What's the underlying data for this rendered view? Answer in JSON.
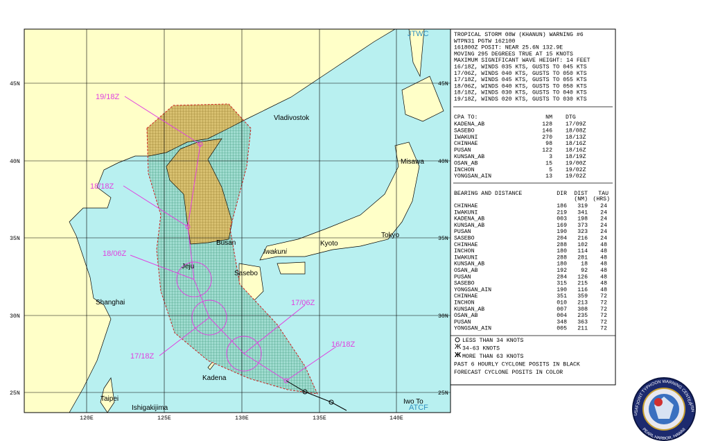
{
  "map": {
    "source_label": "JTWC",
    "footer_label": "ATCF",
    "lat_labels": [
      "45N",
      "40N",
      "35N",
      "30N",
      "25N"
    ],
    "lon_labels": [
      "120E",
      "125E",
      "130E",
      "135E",
      "140E"
    ],
    "places": [
      "Vladivostok",
      "Misawa",
      "Busan",
      "Kyoto",
      "Tokyo",
      "Jeju",
      "Sasebo",
      "Shanghai",
      "Kadena",
      "Taipei",
      "Ishigakijima",
      "Iwo To",
      "Iwakuni"
    ],
    "forecast_labels": [
      "19/18Z",
      "18/18Z",
      "18/06Z",
      "17/06Z",
      "17/18Z",
      "16/18Z"
    ]
  },
  "warning": {
    "header_lines": [
      "TROPICAL STORM 08W (KHANUN) WARNING #6",
      "WTPN31 PGTW 162100",
      "161800Z POSIT: NEAR 25.6N 132.9E",
      "MOVING 295 DEGREES TRUE AT 15 KNOTS",
      "MAXIMUM SIGNIFICANT WAVE HEIGHT: 14 FEET",
      "16/18Z, WINDS 035 KTS, GUSTS TO 045 KTS",
      "17/06Z, WINDS 040 KTS, GUSTS TO 050 KTS",
      "17/18Z, WINDS 045 KTS, GUSTS TO 055 KTS",
      "18/06Z, WINDS 040 KTS, GUSTS TO 050 KTS",
      "18/18Z, WINDS 030 KTS, GUSTS TO 040 KTS",
      "19/18Z, WINDS 020 KTS, GUSTS TO 030 KTS"
    ],
    "cpa": {
      "title": "CPA TO:",
      "columns": [
        "NM",
        "DTG"
      ],
      "rows": [
        [
          "KADENA_AB",
          "128",
          "17/09Z"
        ],
        [
          "SASEBO",
          "146",
          "18/08Z"
        ],
        [
          "IWAKUNI",
          "270",
          "18/13Z"
        ],
        [
          "CHINHAE",
          "98",
          "18/16Z"
        ],
        [
          "PUSAN",
          "122",
          "18/16Z"
        ],
        [
          "KUNSAN_AB",
          "3",
          "18/19Z"
        ],
        [
          "OSAN_AB",
          "15",
          "19/00Z"
        ],
        [
          "INCHON",
          "5",
          "19/02Z"
        ],
        [
          "YONGSAN_AIN",
          "13",
          "19/02Z"
        ]
      ]
    },
    "bearing": {
      "columns": [
        "BEARING AND DISTANCE",
        "DIR",
        "DIST",
        "TAU"
      ],
      "subcolumns": [
        "(NM)",
        "(HRS)"
      ],
      "rows": [
        [
          "CHINHAE",
          "186",
          "319",
          "24"
        ],
        [
          "IWAKUNI",
          "219",
          "341",
          "24"
        ],
        [
          "KADENA_AB",
          "003",
          "198",
          "24"
        ],
        [
          "KUNSAN_AB",
          "169",
          "373",
          "24"
        ],
        [
          "PUSAN",
          "190",
          "323",
          "24"
        ],
        [
          "SASEBO",
          "204",
          "216",
          "24"
        ],
        [
          "CHINHAE",
          "288",
          "102",
          "48"
        ],
        [
          "INCHON",
          "180",
          "114",
          "48"
        ],
        [
          "IWAKUNI",
          "288",
          "281",
          "48"
        ],
        [
          "KUNSAN_AB",
          "180",
          "18",
          "48"
        ],
        [
          "OSAN_AB",
          "192",
          "92",
          "48"
        ],
        [
          "PUSAN",
          "284",
          "126",
          "48"
        ],
        [
          "SASEBO",
          "315",
          "215",
          "48"
        ],
        [
          "YONGSAN_AIN",
          "190",
          "116",
          "48"
        ],
        [
          "CHINHAE",
          "351",
          "359",
          "72"
        ],
        [
          "INCHON",
          "010",
          "213",
          "72"
        ],
        [
          "KUNSAN_AB",
          "007",
          "308",
          "72"
        ],
        [
          "OSAN_AB",
          "004",
          "235",
          "72"
        ],
        [
          "PUSAN",
          "348",
          "363",
          "72"
        ],
        [
          "YONGSAN_AIN",
          "005",
          "211",
          "72"
        ]
      ]
    },
    "legend": [
      "LESS THAN 34 KNOTS",
      "34-63 KNOTS",
      "MORE THAN 63 KNOTS",
      "PAST 6 HOURLY CYCLONE POSITS IN BLACK",
      "FORECAST CYCLONE POSITS IN COLOR"
    ]
  },
  "seal": {
    "top": "JOINT TYPHOON WARNING CENTER",
    "bottom": "PEARL HARBOR, HAWAII",
    "left": "USAF",
    "right": "USN"
  }
}
